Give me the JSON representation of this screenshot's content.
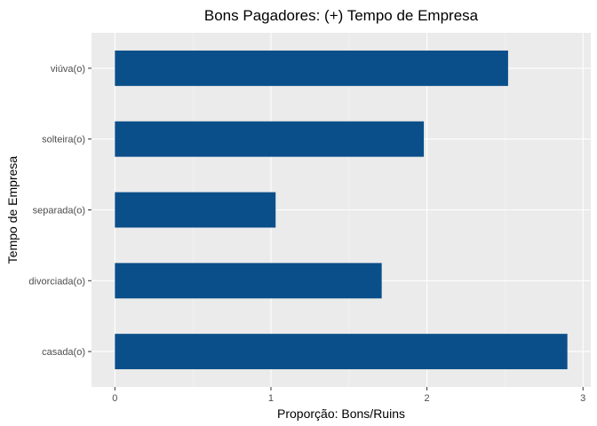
{
  "chart_data": {
    "type": "bar",
    "orientation": "horizontal",
    "title": "Bons Pagadores: (+) Tempo de Empresa",
    "xlabel": "Proporção: Bons/Ruins",
    "ylabel": "Tempo de Empresa",
    "categories": [
      "casada(o)",
      "divorciada(o)",
      "separada(o)",
      "solteira(o)",
      "viúva(o)"
    ],
    "values": [
      2.9,
      1.71,
      1.03,
      1.98,
      2.52
    ],
    "xlim": [
      -0.15,
      3.05
    ],
    "xticks": [
      "0",
      "1",
      "2",
      "3"
    ],
    "grid": true,
    "colors": {
      "bar": "#0b4f8a",
      "panel": "#ebebeb",
      "grid_major": "#ffffff",
      "grid_minor": "#f5f5f5",
      "tick_text": "#4d4d4d",
      "tick_mark": "#333333"
    }
  }
}
